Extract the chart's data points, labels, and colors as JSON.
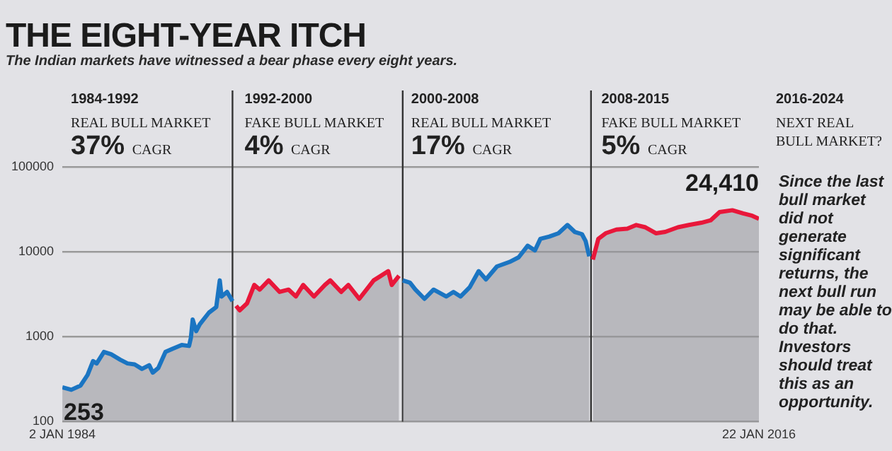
{
  "chart_data": {
    "type": "area",
    "title": "THE EIGHT-YEAR ITCH",
    "subtitle": "The Indian markets have witnessed a bear phase every eight years.",
    "annotations": [
      "1984-1992\nREAL BULL MARKET\n37% CAGR",
      "1992-2000\nFAKE BULL MARKET\n4% CAGR",
      "2000-2008\nREAL BULL MARKET\n17% CAGR",
      "2008-2015\nFAKE BULL MARKET\n5% CAGR",
      "2016-2024\nNEXT REAL\nBULL MARKET?",
      "Since the last bull market did not generate significant returns, the next bull run may be able to do that. Investors should treat this as an opportunity."
    ],
    "series": [
      {
        "color": "#1b75c2",
        "x": [
          "1984-01-02",
          "1984-06",
          "1984-11",
          "1985-03",
          "1985-06",
          "1985-08",
          "1985-12",
          "1986-04",
          "1986-09",
          "1987-01",
          "1987-05",
          "1987-09",
          "1988-01",
          "1988-03",
          "1988-06",
          "1988-10",
          "1989-02",
          "1989-07",
          "1989-11",
          "1989-12",
          "1990-01",
          "1990-03",
          "1990-05",
          "1990-10",
          "1991-02",
          "1991-04",
          "1991-05",
          "1991-08",
          "1991-11"
        ],
        "values": [
          253,
          237,
          265,
          354,
          515,
          484,
          662,
          621,
          535,
          484,
          472,
          417,
          461,
          377,
          427,
          662,
          723,
          798,
          778,
          964,
          1589,
          1161,
          1402,
          1919,
          2228,
          4603,
          2972,
          3365,
          2618
        ],
        "value_labels": [
          "253",
          null,
          null,
          null,
          null,
          null,
          null,
          null,
          null,
          null,
          null,
          null,
          null,
          null,
          null,
          null,
          null,
          null,
          null,
          null,
          null,
          null,
          null,
          null,
          null,
          null,
          null,
          null,
          null
        ]
      },
      {
        "color": "#e8173a",
        "x": [
          "1992-01",
          "1992-03",
          "1992-07",
          "1992-11",
          "1993-02",
          "1993-07",
          "1994-01",
          "1994-06",
          "1994-10",
          "1995-02",
          "1995-08",
          "1996-02",
          "1996-05",
          "1996-11",
          "1997-03",
          "1997-09",
          "1998-01",
          "1998-05",
          "1998-09",
          "1999-01",
          "1999-03",
          "1999-07"
        ],
        "values": [
          2312,
          2042,
          2460,
          4064,
          3581,
          4603,
          3365,
          3581,
          2972,
          4064,
          2972,
          4064,
          4603,
          3365,
          4064,
          2790,
          3581,
          4603,
          5212,
          5912,
          4064,
          5212
        ]
      },
      {
        "color": "#1b75c2",
        "x": [
          "1999-09",
          "2000-01",
          "2000-04",
          "2000-09",
          "2001-02",
          "2001-09",
          "2002-01",
          "2002-05",
          "2002-10",
          "2003-03",
          "2003-07",
          "2004-01",
          "2004-08",
          "2005-01",
          "2005-06",
          "2005-10",
          "2006-01",
          "2006-06",
          "2006-11",
          "2007-04",
          "2007-08",
          "2007-12",
          "2008-02",
          "2008-04"
        ],
        "values": [
          4603,
          4324,
          3581,
          2790,
          3581,
          2972,
          3365,
          2972,
          3819,
          5912,
          4721,
          6699,
          7586,
          8606,
          11770,
          10380,
          14190,
          15100,
          16490,
          20650,
          17140,
          16110,
          13340,
          8830
        ]
      },
      {
        "color": "#e8173a",
        "x": [
          "2008-06",
          "2008-09",
          "2009-01",
          "2009-07",
          "2010-01",
          "2010-06",
          "2010-11",
          "2011-05",
          "2011-10",
          "2012-05",
          "2012-11",
          "2013-06",
          "2013-11",
          "2014-04",
          "2014-11",
          "2015-05",
          "2015-10",
          "2016-01-22"
        ],
        "values": [
          8090,
          14190,
          16490,
          18240,
          18700,
          20650,
          19410,
          16490,
          17140,
          19410,
          20650,
          21980,
          23440,
          29310,
          30830,
          28250,
          26550,
          24410
        ],
        "value_labels": [
          null,
          null,
          null,
          null,
          null,
          null,
          null,
          null,
          null,
          null,
          null,
          null,
          null,
          null,
          null,
          null,
          null,
          "24,410"
        ]
      }
    ],
    "log": true,
    "xlim": [
      "1984-01-02",
      "2016-01-22"
    ],
    "xticks": [
      {
        "value": "1984-01-02",
        "label": "2 JAN 1984"
      },
      {
        "value": "2016-01-22",
        "label": "22 JAN 2016"
      }
    ],
    "ylim": [
      100,
      100000
    ],
    "yticks": [
      100,
      1000,
      10000,
      100000
    ],
    "ref_lines": [
      {
        "axis": "x",
        "value": "1991-11",
        "color": "#333333"
      },
      {
        "axis": "x",
        "value": "1999-09",
        "color": "#333333"
      },
      {
        "axis": "x",
        "value": "2008-05",
        "color": "#333333"
      }
    ],
    "grid": "y",
    "legend": false,
    "marker": "none",
    "line_style": "solid"
  }
}
